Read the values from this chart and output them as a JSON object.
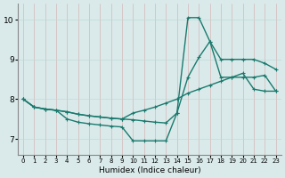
{
  "xlabel": "Humidex (Indice chaleur)",
  "xlim": [
    -0.5,
    23.5
  ],
  "ylim": [
    6.6,
    10.4
  ],
  "xticks": [
    0,
    1,
    2,
    3,
    4,
    5,
    6,
    7,
    8,
    9,
    10,
    11,
    12,
    13,
    14,
    15,
    16,
    17,
    18,
    19,
    20,
    21,
    22,
    23
  ],
  "yticks": [
    7,
    8,
    9,
    10
  ],
  "bg_color": "#daeaea",
  "line_color": "#1a7a6e",
  "line1_x": [
    0,
    1,
    2,
    3,
    4,
    5,
    6,
    7,
    8,
    9,
    10,
    11,
    12,
    13,
    14,
    15,
    16,
    17,
    18,
    19,
    20,
    21,
    22,
    23
  ],
  "line1_y": [
    8.0,
    7.8,
    7.75,
    7.72,
    7.68,
    7.62,
    7.58,
    7.55,
    7.52,
    7.5,
    7.65,
    7.72,
    7.8,
    7.9,
    8.0,
    8.15,
    8.25,
    8.35,
    8.45,
    8.55,
    8.65,
    8.25,
    8.2,
    8.2
  ],
  "line2_x": [
    0,
    1,
    2,
    3,
    4,
    5,
    6,
    7,
    8,
    9,
    10,
    11,
    12,
    13,
    14,
    15,
    16,
    17,
    18,
    19,
    20,
    21,
    22,
    23
  ],
  "line2_y": [
    8.0,
    7.8,
    7.75,
    7.72,
    7.68,
    7.62,
    7.58,
    7.55,
    7.52,
    7.5,
    7.48,
    7.45,
    7.42,
    7.4,
    7.65,
    8.55,
    9.05,
    9.45,
    9.0,
    9.0,
    9.0,
    9.0,
    8.9,
    8.75
  ],
  "line3_x": [
    0,
    1,
    2,
    3,
    4,
    5,
    6,
    7,
    8,
    9,
    10,
    11,
    12,
    13,
    14,
    15,
    16,
    17,
    18,
    19,
    20,
    21,
    22,
    23
  ],
  "line3_y": [
    8.0,
    7.8,
    7.75,
    7.72,
    7.5,
    7.42,
    7.38,
    7.35,
    7.32,
    7.3,
    6.95,
    6.95,
    6.95,
    6.95,
    7.65,
    10.05,
    10.05,
    9.45,
    8.55,
    8.55,
    8.55,
    8.55,
    8.6,
    8.2
  ],
  "marker_size": 2.5,
  "linewidth": 1.0
}
